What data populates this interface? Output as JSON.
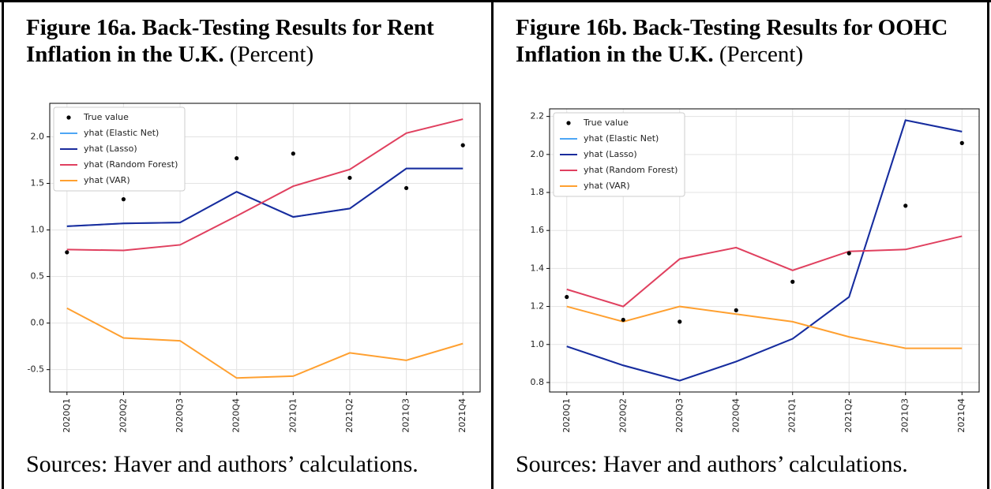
{
  "chart_data": [
    {
      "type": "line",
      "title": "Figure 16a. Back-Testing Results for Rent Inflation in the U.K.",
      "subtitle": "(Percent)",
      "source": "Sources: Haver and authors’ calculations.",
      "categories": [
        "2020Q1",
        "2020Q2",
        "2020Q3",
        "2020Q4",
        "2021Q1",
        "2021Q2",
        "2021Q3",
        "2021Q4"
      ],
      "ylim": [
        -0.74,
        2.36
      ],
      "yticks": [
        {
          "value": -0.5,
          "label": "-0.5"
        },
        {
          "value": 0,
          "label": "0.0"
        },
        0.5,
        {
          "value": 1,
          "label": "1.0"
        },
        1.5,
        {
          "value": 2,
          "label": "2.0"
        }
      ],
      "grid": true,
      "legend": "upper-left",
      "series": [
        {
          "name": "True value",
          "color": "#000000",
          "mode": "markers",
          "values": [
            0.76,
            1.33,
            1.78,
            1.77,
            1.82,
            1.56,
            1.45,
            1.91
          ]
        },
        {
          "name": "yhat (Elastic Net)",
          "color": "#4da6f5",
          "mode": "line",
          "values": [
            1.04,
            1.07,
            1.08,
            1.41,
            1.14,
            1.23,
            1.66,
            1.66
          ]
        },
        {
          "name": "yhat (Lasso)",
          "color": "#1a2b9c",
          "mode": "line",
          "values": [
            1.04,
            1.07,
            1.08,
            1.41,
            1.14,
            1.23,
            1.66,
            1.66
          ]
        },
        {
          "name": "yhat (Random Forest)",
          "color": "#e0405f",
          "mode": "line",
          "values": [
            0.79,
            0.78,
            0.84,
            1.15,
            1.47,
            1.65,
            2.04,
            2.19
          ]
        },
        {
          "name": "yhat (VAR)",
          "color": "#ffa030",
          "mode": "line",
          "values": [
            0.16,
            -0.16,
            -0.19,
            -0.59,
            -0.57,
            -0.32,
            -0.4,
            -0.22
          ]
        }
      ]
    },
    {
      "type": "line",
      "title": "Figure 16b. Back-Testing Results for OOHC Inflation in the U.K.",
      "subtitle": "(Percent)",
      "source": "Sources: Haver and authors’ calculations.",
      "categories": [
        "2020Q1",
        "2020Q2",
        "2020Q3",
        "2020Q4",
        "2021Q1",
        "2021Q2",
        "2021Q3",
        "2021Q4"
      ],
      "ylim": [
        0.75,
        2.24
      ],
      "yticks": [
        0.8,
        {
          "value": 1,
          "label": "1.0"
        },
        1.2,
        1.4,
        1.6,
        1.8,
        {
          "value": 2,
          "label": "2.0"
        },
        2.2
      ],
      "grid": true,
      "legend": "upper-left",
      "series": [
        {
          "name": "True value",
          "color": "#000000",
          "mode": "markers",
          "values": [
            1.25,
            1.13,
            1.12,
            1.18,
            1.33,
            1.48,
            1.73,
            2.06
          ]
        },
        {
          "name": "yhat (Elastic Net)",
          "color": "#4da6f5",
          "mode": "line",
          "values": [
            0.99,
            0.89,
            0.81,
            0.91,
            1.03,
            1.25,
            2.18,
            2.12
          ]
        },
        {
          "name": "yhat (Lasso)",
          "color": "#1a2b9c",
          "mode": "line",
          "values": [
            0.99,
            0.89,
            0.81,
            0.91,
            1.03,
            1.25,
            2.18,
            2.12
          ]
        },
        {
          "name": "yhat (Random Forest)",
          "color": "#e0405f",
          "mode": "line",
          "values": [
            1.29,
            1.2,
            1.45,
            1.51,
            1.39,
            1.49,
            1.5,
            1.57
          ]
        },
        {
          "name": "yhat (VAR)",
          "color": "#ffa030",
          "mode": "line",
          "values": [
            1.2,
            1.12,
            1.2,
            1.16,
            1.12,
            1.04,
            0.98,
            0.98
          ]
        }
      ]
    }
  ]
}
